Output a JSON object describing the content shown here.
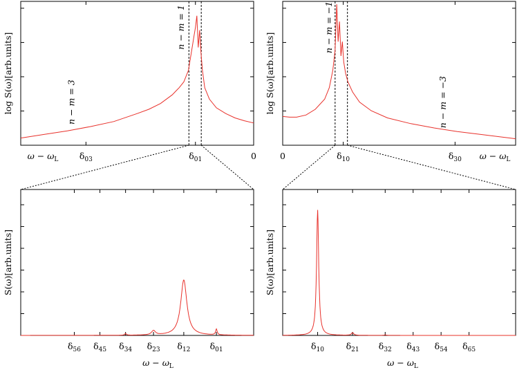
{
  "colors": {
    "curve": "#e8302a",
    "axis": "#000000",
    "guide": "#000000"
  },
  "chart_data": [
    {
      "id": "top-left",
      "type": "line",
      "description_scale": "log",
      "ylabel": "log S(ω)[arb.units]",
      "xlabel": "ω − ω_L",
      "x_tick_labels": [
        {
          "label": "δ03",
          "x": -0.72
        },
        {
          "label": "δ01",
          "x": -0.25
        },
        {
          "label": "0",
          "x": 0
        }
      ],
      "annotations": [
        {
          "text": "n − m = 3",
          "x": -0.77,
          "y": 0.3
        },
        {
          "text": "n − m = 1",
          "x": -0.3,
          "y": 0.82
        }
      ],
      "guide_lines_x": [
        -0.278,
        -0.225
      ],
      "xlim": [
        -1,
        0
      ],
      "ylim": [
        0,
        1
      ],
      "series": [
        {
          "x": [
            -1.0,
            -0.9,
            -0.8,
            -0.7,
            -0.6,
            -0.5,
            -0.45,
            -0.4,
            -0.35,
            -0.32,
            -0.3,
            -0.28,
            -0.27,
            -0.262,
            -0.256,
            -0.25,
            -0.244,
            -0.238,
            -0.232,
            -0.226,
            -0.22,
            -0.21,
            -0.19,
            -0.16,
            -0.12,
            -0.08,
            -0.04,
            0.0
          ],
          "y": [
            0.05,
            0.075,
            0.1,
            0.13,
            0.165,
            0.22,
            0.25,
            0.29,
            0.35,
            0.4,
            0.44,
            0.52,
            0.62,
            0.7,
            0.76,
            0.82,
            0.9,
            0.68,
            0.8,
            0.64,
            0.52,
            0.4,
            0.32,
            0.26,
            0.22,
            0.19,
            0.17,
            0.155
          ]
        }
      ]
    },
    {
      "id": "top-right",
      "type": "line",
      "description_scale": "log",
      "ylabel": "log S(ω)[arb.units]",
      "xlabel": "ω − ω_L",
      "x_tick_labels": [
        {
          "label": "0",
          "x": 0
        },
        {
          "label": "δ10",
          "x": 0.26
        },
        {
          "label": "δ30",
          "x": 0.74
        }
      ],
      "annotations": [
        {
          "text": "n − m = −1",
          "x": 0.21,
          "y": 0.82
        },
        {
          "text": "n − m = −3",
          "x": 0.7,
          "y": 0.3
        }
      ],
      "guide_lines_x": [
        0.225,
        0.278
      ],
      "xlim": [
        0,
        1
      ],
      "ylim": [
        0,
        1
      ],
      "series": [
        {
          "x": [
            0.0,
            0.03,
            0.06,
            0.1,
            0.14,
            0.18,
            0.2,
            0.215,
            0.225,
            0.232,
            0.238,
            0.244,
            0.25,
            0.256,
            0.262,
            0.27,
            0.28,
            0.3,
            0.33,
            0.38,
            0.45,
            0.55,
            0.65,
            0.75,
            0.85,
            1.0
          ],
          "y": [
            0.2,
            0.195,
            0.195,
            0.21,
            0.25,
            0.32,
            0.4,
            0.52,
            0.66,
            0.98,
            0.72,
            0.86,
            0.62,
            0.72,
            0.58,
            0.5,
            0.44,
            0.37,
            0.3,
            0.24,
            0.19,
            0.15,
            0.12,
            0.095,
            0.075,
            0.045
          ]
        }
      ]
    },
    {
      "id": "bottom-left",
      "type": "line",
      "ylabel": "S(ω)[arb.units]",
      "xlabel": "ω − ω_L",
      "x_tick_labels": [
        {
          "label": "δ56",
          "x": 0.23
        },
        {
          "label": "δ45",
          "x": 0.34
        },
        {
          "label": "δ34",
          "x": 0.45
        },
        {
          "label": "δ23",
          "x": 0.57
        },
        {
          "label": "δ12",
          "x": 0.7
        },
        {
          "label": "δ01",
          "x": 0.84
        }
      ],
      "xlim": [
        0,
        1
      ],
      "ylim": [
        0,
        1
      ],
      "peaks": [
        {
          "x0": 0.45,
          "height": 0.012,
          "width": 0.004
        },
        {
          "x0": 0.57,
          "height": 0.03,
          "width": 0.01
        },
        {
          "x0": 0.7,
          "height": 0.38,
          "width": 0.016
        },
        {
          "x0": 0.84,
          "height": 0.04,
          "width": 0.004
        }
      ]
    },
    {
      "id": "bottom-right",
      "type": "line",
      "ylabel": "S(ω)[arb.units]",
      "xlabel": "ω − ω_L",
      "x_tick_labels": [
        {
          "label": "δ10",
          "x": 0.15
        },
        {
          "label": "δ21",
          "x": 0.3
        },
        {
          "label": "δ32",
          "x": 0.44
        },
        {
          "label": "δ43",
          "x": 0.56
        },
        {
          "label": "δ54",
          "x": 0.68
        },
        {
          "label": "δ65",
          "x": 0.8
        }
      ],
      "xlim": [
        0,
        1
      ],
      "ylim": [
        0,
        1
      ],
      "peaks": [
        {
          "x0": 0.15,
          "height": 0.86,
          "width": 0.0055
        },
        {
          "x0": 0.3,
          "height": 0.018,
          "width": 0.006
        },
        {
          "x0": 0.44,
          "height": 0.004,
          "width": 0.004
        }
      ]
    }
  ]
}
